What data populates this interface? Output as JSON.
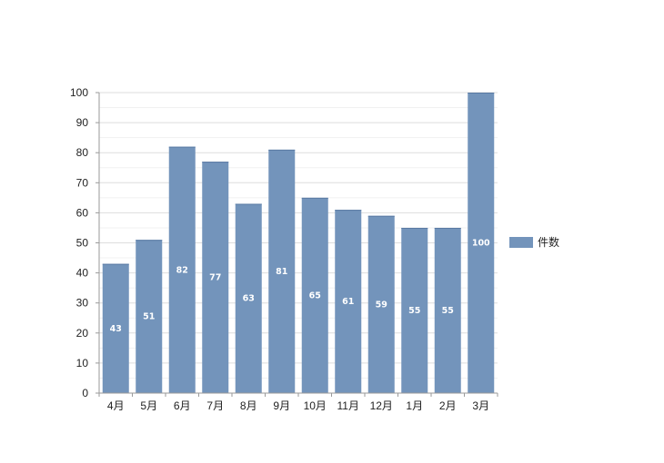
{
  "chart_data": {
    "type": "bar",
    "categories": [
      "4月",
      "5月",
      "6月",
      "7月",
      "8月",
      "9月",
      "10月",
      "11月",
      "12月",
      "1月",
      "2月",
      "3月"
    ],
    "series": [
      {
        "name": "件数",
        "values": [
          43,
          51,
          82,
          77,
          63,
          81,
          65,
          61,
          59,
          55,
          55,
          100
        ],
        "color": "#7394bb"
      }
    ],
    "data_labels": true,
    "y_ticks": [
      0,
      10,
      20,
      30,
      40,
      50,
      60,
      70,
      80,
      90,
      100
    ],
    "ylim": [
      0,
      100
    ],
    "grid": true,
    "legend": "right",
    "title": "",
    "xlabel": "",
    "ylabel": ""
  }
}
